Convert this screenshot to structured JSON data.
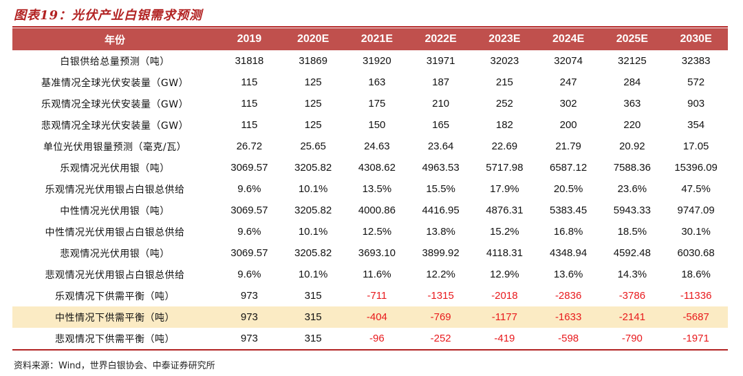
{
  "title": "图表19：光伏产业白银需求预测",
  "table": {
    "header_label": "年份",
    "years": [
      "2019",
      "2020E",
      "2021E",
      "2022E",
      "2023E",
      "2024E",
      "2025E",
      "2030E"
    ],
    "rows": [
      {
        "label": "白银供给总量预测（吨）",
        "values": [
          "31818",
          "31869",
          "31920",
          "31971",
          "32023",
          "32074",
          "32125",
          "32383"
        ],
        "highlight": false
      },
      {
        "label": "基准情况全球光伏安装量（GW）",
        "values": [
          "115",
          "125",
          "163",
          "187",
          "215",
          "247",
          "284",
          "572"
        ],
        "highlight": false
      },
      {
        "label": "乐观情况全球光伏安装量（GW）",
        "values": [
          "115",
          "125",
          "175",
          "210",
          "252",
          "302",
          "363",
          "903"
        ],
        "highlight": false
      },
      {
        "label": "悲观情况全球光伏安装量（GW）",
        "values": [
          "115",
          "125",
          "150",
          "165",
          "182",
          "200",
          "220",
          "354"
        ],
        "highlight": false
      },
      {
        "label": "单位光伏用银量预测（毫克/瓦）",
        "values": [
          "26.72",
          "25.65",
          "24.63",
          "23.64",
          "22.69",
          "21.79",
          "20.92",
          "17.05"
        ],
        "highlight": false
      },
      {
        "label": "乐观情况光伏用银（吨）",
        "values": [
          "3069.57",
          "3205.82",
          "4308.62",
          "4963.53",
          "5717.98",
          "6587.12",
          "7588.36",
          "15396.09"
        ],
        "highlight": false
      },
      {
        "label": "乐观情况光伏用银占白银总供给",
        "values": [
          "9.6%",
          "10.1%",
          "13.5%",
          "15.5%",
          "17.9%",
          "20.5%",
          "23.6%",
          "47.5%"
        ],
        "highlight": false
      },
      {
        "label": "中性情况光伏用银（吨）",
        "values": [
          "3069.57",
          "3205.82",
          "4000.86",
          "4416.95",
          "4876.31",
          "5383.45",
          "5943.33",
          "9747.09"
        ],
        "highlight": false
      },
      {
        "label": "中性情况光伏用银占白银总供给",
        "values": [
          "9.6%",
          "10.1%",
          "12.5%",
          "13.8%",
          "15.2%",
          "16.8%",
          "18.5%",
          "30.1%"
        ],
        "highlight": false
      },
      {
        "label": "悲观情况光伏用银（吨）",
        "values": [
          "3069.57",
          "3205.82",
          "3693.10",
          "3899.92",
          "4118.31",
          "4348.94",
          "4592.48",
          "6030.68"
        ],
        "highlight": false
      },
      {
        "label": "悲观情况光伏用银占白银总供给",
        "values": [
          "9.6%",
          "10.1%",
          "11.6%",
          "12.2%",
          "12.9%",
          "13.6%",
          "14.3%",
          "18.6%"
        ],
        "highlight": false
      },
      {
        "label": "乐观情况下供需平衡（吨）",
        "values": [
          "973",
          "315",
          "-711",
          "-1315",
          "-2018",
          "-2836",
          "-3786",
          "-11336"
        ],
        "highlight": false
      },
      {
        "label": "中性情况下供需平衡（吨）",
        "values": [
          "973",
          "315",
          "-404",
          "-769",
          "-1177",
          "-1633",
          "-2141",
          "-5687"
        ],
        "highlight": true
      },
      {
        "label": "悲观情况下供需平衡（吨）",
        "values": [
          "973",
          "315",
          "-96",
          "-252",
          "-419",
          "-598",
          "-790",
          "-1971"
        ],
        "highlight": false
      }
    ]
  },
  "source": "资料来源：Wind，世界白银协会、中泰证券研究所",
  "colors": {
    "accent": "#b22222",
    "header_bg": "#c0504d",
    "highlight_bg": "#fbebc4",
    "negative": "#e8191c"
  }
}
